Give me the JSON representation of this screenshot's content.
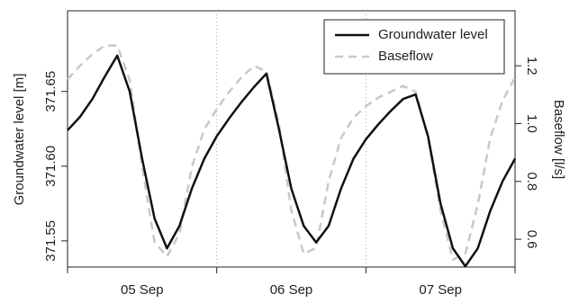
{
  "chart_data": {
    "type": "line",
    "y_label": "Groundwater level [m]",
    "y2_label": "Baseflow [l/s]",
    "x": [
      0,
      2,
      4,
      6,
      8,
      10,
      12,
      14,
      16,
      18,
      20,
      22,
      24,
      26,
      28,
      30,
      32,
      34,
      36,
      38,
      40,
      42,
      44,
      46,
      48,
      50,
      52,
      54,
      56,
      58,
      60,
      62,
      64,
      66,
      68,
      70,
      72
    ],
    "xlim": [
      0,
      72
    ],
    "xticks": [
      0,
      24,
      48,
      72
    ],
    "day_labels": [
      {
        "value": 12,
        "label": "05 Sep"
      },
      {
        "value": 36,
        "label": "06 Sep"
      },
      {
        "value": 60,
        "label": "07 Sep"
      }
    ],
    "vlines": [
      24,
      48
    ],
    "ylim": [
      371.5325,
      371.704
    ],
    "yticks": [
      371.55,
      {
        "value": 371.6,
        "label": "371.60"
      },
      371.65
    ],
    "y2lim": [
      0.504,
      1.39
    ],
    "y2ticks": [
      0.6,
      0.8,
      {
        "value": 1,
        "label": "1.0"
      },
      1.2
    ],
    "legend": "top-right",
    "series": [
      {
        "name": "Groundwater level",
        "color": "#111111",
        "dash": false,
        "values": [
          371.624,
          371.633,
          371.645,
          371.66,
          371.674,
          371.65,
          371.605,
          371.565,
          371.545,
          371.56,
          371.585,
          371.605,
          371.62,
          371.632,
          371.643,
          371.653,
          371.662,
          371.625,
          371.585,
          371.56,
          371.549,
          371.56,
          371.585,
          371.605,
          371.618,
          371.628,
          371.637,
          371.645,
          371.648,
          371.62,
          371.575,
          371.545,
          371.533,
          371.545,
          371.57,
          371.59,
          371.605
        ]
      },
      {
        "name": "Baseflow",
        "color": "#c8c8c8",
        "dash": true,
        "axis": "y2",
        "values": [
          1.153,
          1.2,
          1.24,
          1.27,
          1.27,
          1.15,
          0.85,
          0.59,
          0.54,
          0.62,
          0.85,
          0.98,
          1.05,
          1.11,
          1.16,
          1.2,
          1.18,
          1.0,
          0.7,
          0.55,
          0.57,
          0.8,
          0.95,
          1.02,
          1.06,
          1.09,
          1.11,
          1.13,
          1.11,
          0.95,
          0.7,
          0.53,
          0.55,
          0.72,
          0.95,
          1.08,
          1.16
        ]
      }
    ]
  }
}
